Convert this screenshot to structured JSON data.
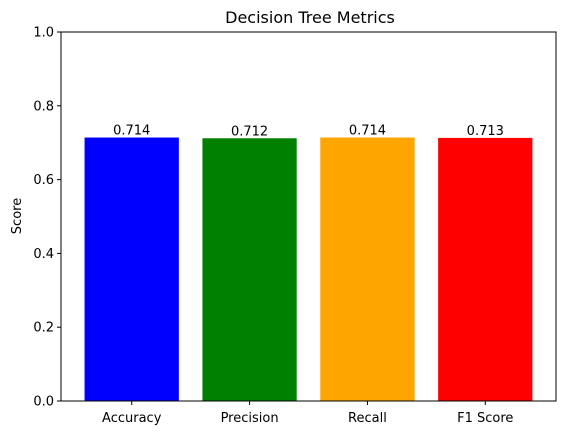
{
  "chart_data": {
    "type": "bar",
    "title": "Decision Tree Metrics",
    "xlabel": "",
    "ylabel": "Score",
    "categories": [
      "Accuracy",
      "Precision",
      "Recall",
      "F1 Score"
    ],
    "values": [
      0.714,
      0.712,
      0.714,
      0.713
    ],
    "value_labels": [
      "0.714",
      "0.712",
      "0.714",
      "0.713"
    ],
    "colors": [
      "#0000ff",
      "#008000",
      "#ffa500",
      "#ff0000"
    ],
    "ylim": [
      0,
      1.0
    ],
    "yticks": [
      0.0,
      0.2,
      0.4,
      0.6,
      0.8,
      1.0
    ],
    "ytick_labels": [
      "0.0",
      "0.2",
      "0.4",
      "0.6",
      "0.8",
      "1.0"
    ],
    "grid": false,
    "legend": "none"
  }
}
